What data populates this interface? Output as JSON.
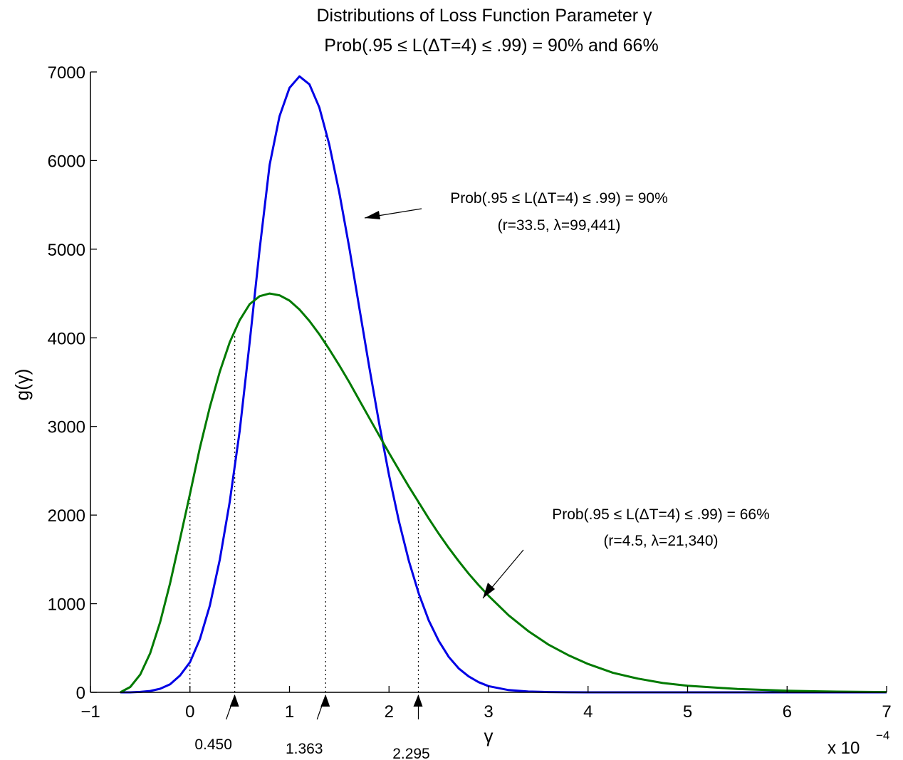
{
  "chart_data": {
    "type": "line",
    "title": "Distributions of Loss Function Parameter γ",
    "subtitle": "Prob(.95 ≤ L(ΔT=4) ≤ .99) = 90% and 66%",
    "xlabel": "γ",
    "ylabel": "g(γ)",
    "x_multiplier": "x 10",
    "x_multiplier_exp": "−4",
    "xlim": [
      -1,
      7
    ],
    "ylim": [
      0,
      7000
    ],
    "xticks": [
      -1,
      0,
      1,
      2,
      3,
      4,
      5,
      6,
      7
    ],
    "xtick_labels": [
      "−1",
      "0",
      "1",
      "2",
      "3",
      "4",
      "5",
      "6",
      "7"
    ],
    "yticks": [
      0,
      1000,
      2000,
      3000,
      4000,
      5000,
      6000,
      7000
    ],
    "ytick_labels": [
      "0",
      "1000",
      "2000",
      "3000",
      "4000",
      "5000",
      "6000",
      "7000"
    ],
    "grid": false,
    "x": [
      -0.7,
      -0.6,
      -0.5,
      -0.4,
      -0.3,
      -0.2,
      -0.1,
      0.0,
      0.1,
      0.2,
      0.3,
      0.4,
      0.5,
      0.6,
      0.7,
      0.8,
      0.9,
      1.0,
      1.1,
      1.2,
      1.3,
      1.4,
      1.5,
      1.6,
      1.7,
      1.8,
      1.9,
      2.0,
      2.1,
      2.2,
      2.3,
      2.4,
      2.5,
      2.6,
      2.7,
      2.8,
      2.9,
      3.0,
      3.2,
      3.4,
      3.6,
      3.8,
      4.0,
      4.25,
      4.5,
      4.75,
      5.0,
      5.5,
      6.0,
      6.5,
      7.0
    ],
    "series": [
      {
        "color": "#0000e6",
        "values": [
          0,
          0,
          5,
          15,
          40,
          90,
          190,
          340,
          600,
          980,
          1500,
          2150,
          2950,
          3950,
          5000,
          5950,
          6500,
          6820,
          6950,
          6860,
          6600,
          6180,
          5640,
          5020,
          4350,
          3680,
          3040,
          2450,
          1930,
          1480,
          1110,
          810,
          580,
          400,
          270,
          180,
          115,
          70,
          26,
          9,
          3,
          1,
          0,
          0,
          0,
          0,
          0,
          0,
          0,
          0,
          0
        ]
      },
      {
        "color": "#007a00",
        "values": [
          0,
          60,
          200,
          440,
          790,
          1230,
          1730,
          2240,
          2760,
          3220,
          3620,
          3950,
          4200,
          4380,
          4470,
          4500,
          4480,
          4420,
          4320,
          4190,
          4040,
          3870,
          3690,
          3500,
          3300,
          3100,
          2900,
          2700,
          2510,
          2320,
          2140,
          1960,
          1790,
          1630,
          1480,
          1340,
          1210,
          1090,
          870,
          690,
          540,
          420,
          320,
          220,
          155,
          105,
          75,
          38,
          18,
          8,
          3
        ]
      }
    ],
    "markers": [
      {
        "x": 0.45,
        "label": "0.450"
      },
      {
        "x": 1.363,
        "label": "1.363"
      },
      {
        "x": 2.295,
        "label": "2.295"
      }
    ],
    "vertical_lines": [
      0.0,
      0.45,
      1.363,
      2.295
    ],
    "annotations": [
      {
        "line1": "Prob(.95 ≤ L(ΔT=4) ≤ .99) = 90%",
        "line2": "(r=33.5, λ=99,441)"
      },
      {
        "line1": "Prob(.95 ≤ L(ΔT=4) ≤ .99) = 66%",
        "line2": "(r=4.5, λ=21,340)"
      }
    ]
  }
}
